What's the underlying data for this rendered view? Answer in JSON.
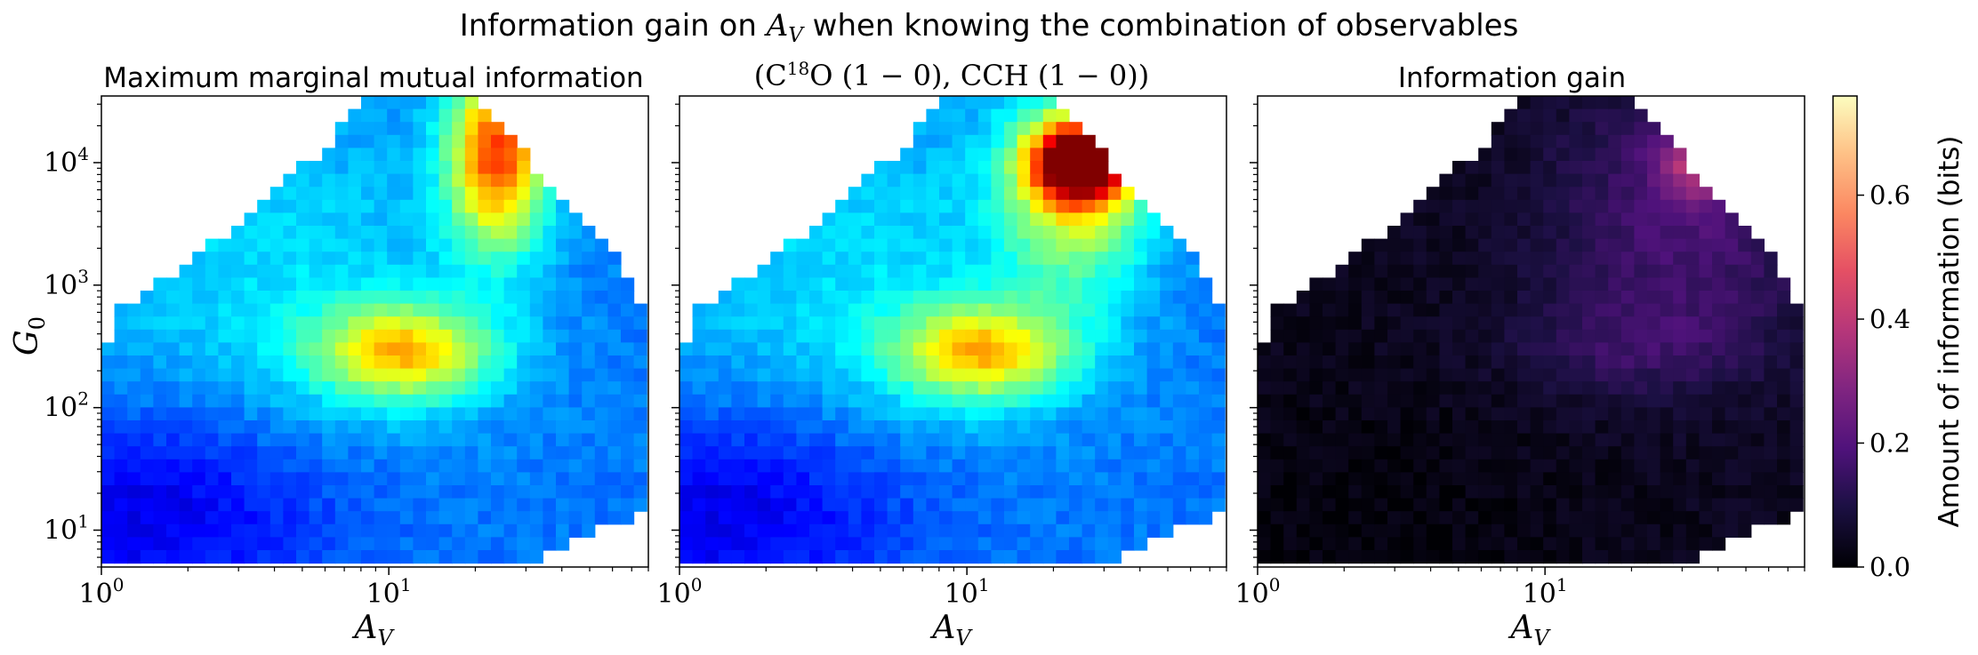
{
  "figure": {
    "suptitle_text": "Information gain on ",
    "suptitle_var": "A",
    "suptitle_sub": "V",
    "suptitle_rest": " when knowing the combination of observables"
  },
  "colorbar": {
    "label": "Amount of information (bits)",
    "ticks": [
      "0.0",
      "0.2",
      "0.4",
      "0.6"
    ]
  },
  "axes": {
    "xlabel_var": "A",
    "xlabel_sub": "V",
    "ylabel_var": "G",
    "ylabel_sub": "0",
    "xticks": [
      {
        "base": "10",
        "exp": "0"
      },
      {
        "base": "10",
        "exp": "1"
      }
    ],
    "yticks": [
      {
        "base": "10",
        "exp": "1"
      },
      {
        "base": "10",
        "exp": "2"
      },
      {
        "base": "10",
        "exp": "3"
      },
      {
        "base": "10",
        "exp": "4"
      }
    ]
  },
  "chart_data": [
    {
      "type": "heatmap",
      "title": "Maximum marginal mutual information",
      "xlabel": "A_V",
      "ylabel": "G_0",
      "xscale": "log",
      "yscale": "log",
      "xlim": [
        1,
        80
      ],
      "ylim": [
        5,
        35000
      ],
      "colormap": "jet",
      "color_range_bits": [
        0,
        0.76
      ],
      "peak_region": {
        "A_V": [
          20,
          30
        ],
        "G_0": [
          4000,
          35000
        ],
        "approx_value_bits": 0.5
      },
      "secondary_peak": {
        "A_V": 11,
        "G_0": 300,
        "approx_value_bits": 0.32
      }
    },
    {
      "type": "heatmap",
      "title_prefix": "(C",
      "title_sup": "18",
      "title_mid": "O (1 − 0), CCH (1 − 0))",
      "xlabel": "A_V",
      "xscale": "log",
      "yscale": "log",
      "xlim": [
        1,
        80
      ],
      "ylim": [
        5,
        35000
      ],
      "colormap": "jet",
      "color_range_bits": [
        0,
        0.76
      ],
      "peak_region": {
        "A_V": 25,
        "G_0": 10000,
        "approx_value_bits": 0.62
      },
      "secondary_peak": {
        "A_V": 11,
        "G_0": 300,
        "approx_value_bits": 0.3
      }
    },
    {
      "type": "heatmap",
      "title": "Information gain",
      "xlabel": "A_V",
      "xscale": "log",
      "yscale": "log",
      "xlim": [
        1,
        80
      ],
      "ylim": [
        5,
        35000
      ],
      "colormap": "magma",
      "color_range_bits": [
        0,
        0.76
      ],
      "peak_region": {
        "A_V": 35,
        "G_0": 10000,
        "approx_value_bits": 0.45
      }
    }
  ]
}
